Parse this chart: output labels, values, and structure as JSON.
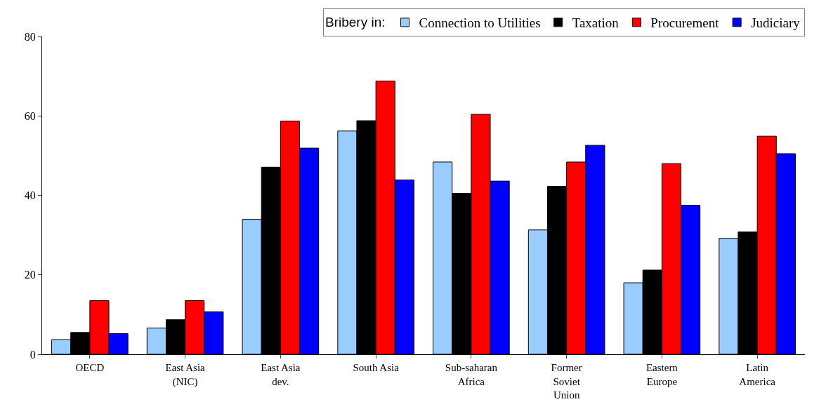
{
  "chart_data": {
    "type": "bar",
    "categories": [
      "OECD",
      "East Asia (NIC)",
      "East Asia dev.",
      "South Asia",
      "Sub-saharan Africa",
      "Former Soviet Union",
      "Eastern Europe",
      "Latin America"
    ],
    "legend_title": "Bribery in:",
    "series": [
      {
        "name": "Connection to Utilities",
        "color": "#99ccff",
        "values": [
          3.7,
          6.6,
          34,
          56.2,
          48.4,
          31.3,
          18,
          29.2
        ]
      },
      {
        "name": "Taxation",
        "color": "#000000",
        "values": [
          5.5,
          8.7,
          47.1,
          58.8,
          40.5,
          42.3,
          21.2,
          30.8
        ]
      },
      {
        "name": "Procurement",
        "color": "#ff0000",
        "values": [
          13.5,
          13.5,
          58.7,
          68.8,
          60.4,
          48.4,
          48,
          54.9
        ]
      },
      {
        "name": "Judiciary",
        "color": "#0000ff",
        "values": [
          5.2,
          10.7,
          51.9,
          43.9,
          43.6,
          52.6,
          37.5,
          50.5
        ]
      }
    ],
    "ylim": [
      0,
      80
    ],
    "yticks": [
      0,
      20,
      40,
      60,
      80
    ],
    "legend": "top right"
  }
}
